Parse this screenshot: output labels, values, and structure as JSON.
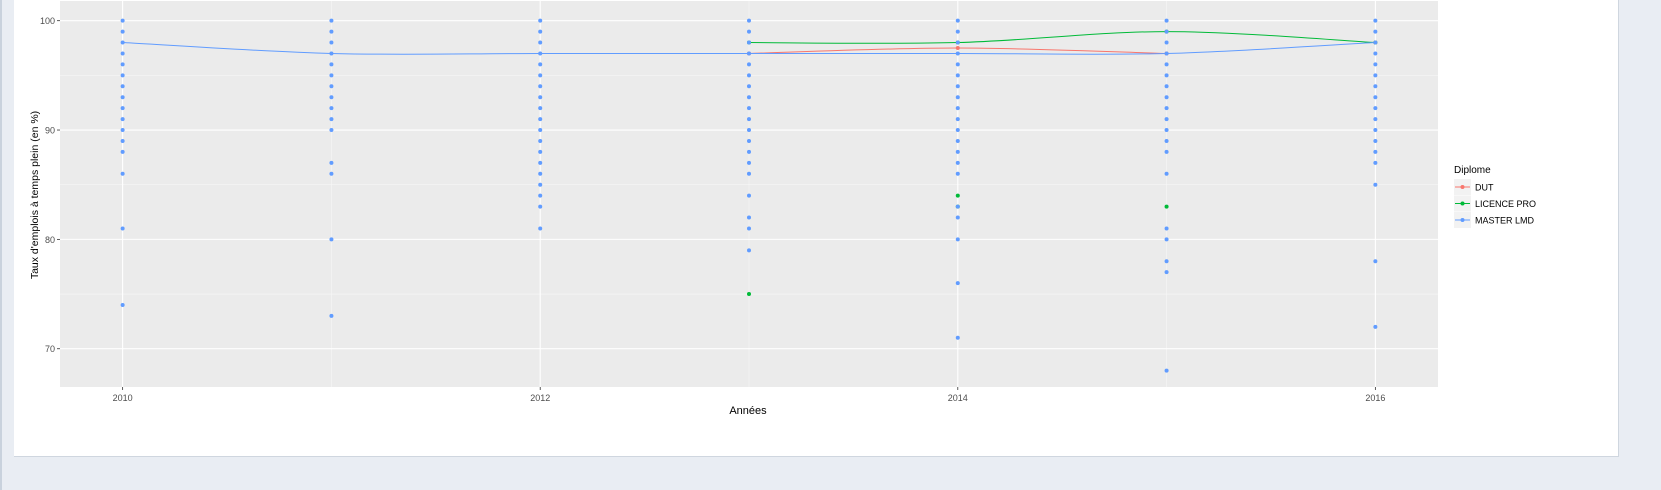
{
  "chart_data": {
    "type": "scatter",
    "xlabel": "Années",
    "ylabel": "Taux d'emplois à temps plein (en %)",
    "xlim": [
      2009.7,
      2016.3
    ],
    "ylim": [
      66.5,
      101.8
    ],
    "xticks": [
      2010,
      2012,
      2014,
      2016
    ],
    "yticks": [
      70,
      80,
      90,
      100
    ],
    "grid": true,
    "legend_position": "right",
    "legend_title": "Diplome",
    "series": [
      {
        "name": "DUT",
        "color": "#F8766D",
        "points": [
          [
            2013,
            97
          ],
          [
            2014,
            97.5
          ],
          [
            2015,
            97
          ],
          [
            2016,
            98
          ]
        ],
        "line": [
          [
            2013,
            97
          ],
          [
            2014,
            97.5
          ],
          [
            2015,
            97
          ]
        ]
      },
      {
        "name": "LICENCE PRO",
        "color": "#00BA38",
        "points": [
          [
            2013,
            98
          ],
          [
            2013,
            75
          ],
          [
            2014,
            98
          ],
          [
            2014,
            84
          ],
          [
            2014,
            83
          ],
          [
            2015,
            99
          ],
          [
            2015,
            83
          ],
          [
            2016,
            98
          ]
        ],
        "line": [
          [
            2013,
            98
          ],
          [
            2014,
            98
          ],
          [
            2015,
            99
          ],
          [
            2016,
            98
          ]
        ]
      },
      {
        "name": "MASTER LMD",
        "color": "#619CFF",
        "points": [
          [
            2010,
            100
          ],
          [
            2010,
            99
          ],
          [
            2010,
            98
          ],
          [
            2010,
            97
          ],
          [
            2010,
            96
          ],
          [
            2010,
            95
          ],
          [
            2010,
            94
          ],
          [
            2010,
            93
          ],
          [
            2010,
            92
          ],
          [
            2010,
            91
          ],
          [
            2010,
            90
          ],
          [
            2010,
            89
          ],
          [
            2010,
            88
          ],
          [
            2010,
            86
          ],
          [
            2010,
            81
          ],
          [
            2010,
            74
          ],
          [
            2011,
            100
          ],
          [
            2011,
            99
          ],
          [
            2011,
            98
          ],
          [
            2011,
            97
          ],
          [
            2011,
            96
          ],
          [
            2011,
            95
          ],
          [
            2011,
            94
          ],
          [
            2011,
            93
          ],
          [
            2011,
            92
          ],
          [
            2011,
            91
          ],
          [
            2011,
            90
          ],
          [
            2011,
            87
          ],
          [
            2011,
            86
          ],
          [
            2011,
            80
          ],
          [
            2011,
            73
          ],
          [
            2012,
            100
          ],
          [
            2012,
            99
          ],
          [
            2012,
            98
          ],
          [
            2012,
            97
          ],
          [
            2012,
            96
          ],
          [
            2012,
            95
          ],
          [
            2012,
            94
          ],
          [
            2012,
            93
          ],
          [
            2012,
            92
          ],
          [
            2012,
            91
          ],
          [
            2012,
            90
          ],
          [
            2012,
            89
          ],
          [
            2012,
            88
          ],
          [
            2012,
            87
          ],
          [
            2012,
            86
          ],
          [
            2012,
            85
          ],
          [
            2012,
            84
          ],
          [
            2012,
            83
          ],
          [
            2012,
            81
          ],
          [
            2013,
            100
          ],
          [
            2013,
            99
          ],
          [
            2013,
            98
          ],
          [
            2013,
            97
          ],
          [
            2013,
            96
          ],
          [
            2013,
            95
          ],
          [
            2013,
            94
          ],
          [
            2013,
            93
          ],
          [
            2013,
            92
          ],
          [
            2013,
            91
          ],
          [
            2013,
            90
          ],
          [
            2013,
            89
          ],
          [
            2013,
            88
          ],
          [
            2013,
            87
          ],
          [
            2013,
            86
          ],
          [
            2013,
            84
          ],
          [
            2013,
            82
          ],
          [
            2013,
            81
          ],
          [
            2013,
            79
          ],
          [
            2014,
            100
          ],
          [
            2014,
            99
          ],
          [
            2014,
            98
          ],
          [
            2014,
            97
          ],
          [
            2014,
            96
          ],
          [
            2014,
            95
          ],
          [
            2014,
            94
          ],
          [
            2014,
            93
          ],
          [
            2014,
            92
          ],
          [
            2014,
            91
          ],
          [
            2014,
            90
          ],
          [
            2014,
            89
          ],
          [
            2014,
            88
          ],
          [
            2014,
            87
          ],
          [
            2014,
            86
          ],
          [
            2014,
            83
          ],
          [
            2014,
            82
          ],
          [
            2014,
            80
          ],
          [
            2014,
            76
          ],
          [
            2014,
            71
          ],
          [
            2015,
            100
          ],
          [
            2015,
            99
          ],
          [
            2015,
            98
          ],
          [
            2015,
            97
          ],
          [
            2015,
            96
          ],
          [
            2015,
            95
          ],
          [
            2015,
            94
          ],
          [
            2015,
            93
          ],
          [
            2015,
            92
          ],
          [
            2015,
            91
          ],
          [
            2015,
            90
          ],
          [
            2015,
            89
          ],
          [
            2015,
            88
          ],
          [
            2015,
            86
          ],
          [
            2015,
            81
          ],
          [
            2015,
            80
          ],
          [
            2015,
            78
          ],
          [
            2015,
            77
          ],
          [
            2015,
            68
          ],
          [
            2016,
            100
          ],
          [
            2016,
            99
          ],
          [
            2016,
            98
          ],
          [
            2016,
            97
          ],
          [
            2016,
            96
          ],
          [
            2016,
            95
          ],
          [
            2016,
            94
          ],
          [
            2016,
            93
          ],
          [
            2016,
            92
          ],
          [
            2016,
            91
          ],
          [
            2016,
            90
          ],
          [
            2016,
            89
          ],
          [
            2016,
            88
          ],
          [
            2016,
            87
          ],
          [
            2016,
            85
          ],
          [
            2016,
            78
          ],
          [
            2016,
            72
          ]
        ],
        "line": [
          [
            2010,
            98
          ],
          [
            2011,
            97
          ],
          [
            2012,
            97
          ],
          [
            2013,
            97
          ],
          [
            2014,
            97
          ],
          [
            2015,
            97
          ],
          [
            2016,
            98
          ]
        ]
      }
    ]
  }
}
